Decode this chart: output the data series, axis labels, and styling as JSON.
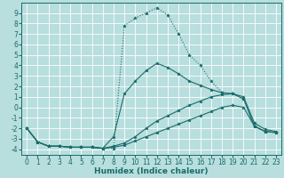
{
  "bg_color": "#b8dede",
  "grid_color": "#e8f8f8",
  "line_color": "#1a6b6b",
  "marker_color": "#1a6b6b",
  "xlabel": "Humidex (Indice chaleur)",
  "xlabel_fontsize": 6.5,
  "tick_fontsize": 5.5,
  "xlim": [
    -0.5,
    23.5
  ],
  "ylim": [
    -4.5,
    10.0
  ],
  "yticks": [
    -4,
    -3,
    -2,
    -1,
    0,
    1,
    2,
    3,
    4,
    5,
    6,
    7,
    8,
    9
  ],
  "xticks": [
    0,
    1,
    2,
    3,
    4,
    5,
    6,
    7,
    8,
    9,
    10,
    11,
    12,
    13,
    14,
    15,
    16,
    17,
    18,
    19,
    20,
    21,
    22,
    23
  ],
  "curves": [
    {
      "x": [
        0,
        1,
        2,
        3,
        4,
        5,
        6,
        7,
        8,
        9,
        10,
        11,
        12,
        13,
        14,
        15,
        16,
        17,
        18,
        19,
        20,
        21,
        22,
        23
      ],
      "y": [
        -2.0,
        -3.3,
        -3.7,
        -3.7,
        -3.8,
        -3.8,
        -3.8,
        -3.9,
        -3.9,
        7.8,
        8.5,
        9.0,
        9.5,
        8.8,
        7.0,
        5.0,
        4.0,
        2.5,
        1.4,
        1.3,
        0.8,
        -1.8,
        -2.3,
        -2.4
      ],
      "marker": "*",
      "markersize": 2.5,
      "linewidth": 0.8,
      "linestyle": ":"
    },
    {
      "x": [
        0,
        1,
        2,
        3,
        4,
        5,
        6,
        7,
        8,
        9,
        10,
        11,
        12,
        13,
        14,
        15,
        16,
        17,
        18,
        19,
        20,
        21,
        22,
        23
      ],
      "y": [
        -2.0,
        -3.3,
        -3.7,
        -3.7,
        -3.8,
        -3.8,
        -3.8,
        -3.9,
        -2.8,
        1.3,
        2.5,
        3.5,
        4.2,
        3.8,
        3.2,
        2.5,
        2.1,
        1.7,
        1.4,
        1.3,
        0.8,
        -1.8,
        -2.3,
        -2.4
      ],
      "marker": "*",
      "markersize": 2.5,
      "linewidth": 0.8,
      "linestyle": "-"
    },
    {
      "x": [
        0,
        1,
        2,
        3,
        4,
        5,
        6,
        7,
        8,
        9,
        10,
        11,
        12,
        13,
        14,
        15,
        16,
        17,
        18,
        19,
        20,
        21,
        22,
        23
      ],
      "y": [
        -2.0,
        -3.3,
        -3.7,
        -3.7,
        -3.8,
        -3.8,
        -3.8,
        -3.9,
        -3.7,
        -3.4,
        -2.8,
        -2.0,
        -1.3,
        -0.8,
        -0.3,
        0.2,
        0.6,
        1.0,
        1.2,
        1.3,
        1.0,
        -1.5,
        -2.1,
        -2.3
      ],
      "marker": "*",
      "markersize": 2.5,
      "linewidth": 0.8,
      "linestyle": "-"
    },
    {
      "x": [
        0,
        1,
        2,
        3,
        4,
        5,
        6,
        7,
        8,
        9,
        10,
        11,
        12,
        13,
        14,
        15,
        16,
        17,
        18,
        19,
        20,
        21,
        22,
        23
      ],
      "y": [
        -2.0,
        -3.3,
        -3.7,
        -3.7,
        -3.8,
        -3.8,
        -3.8,
        -3.9,
        -3.8,
        -3.6,
        -3.2,
        -2.8,
        -2.4,
        -2.0,
        -1.6,
        -1.2,
        -0.8,
        -0.4,
        0.0,
        0.2,
        0.0,
        -1.8,
        -2.3,
        -2.4
      ],
      "marker": "*",
      "markersize": 2.5,
      "linewidth": 0.8,
      "linestyle": "-"
    }
  ]
}
